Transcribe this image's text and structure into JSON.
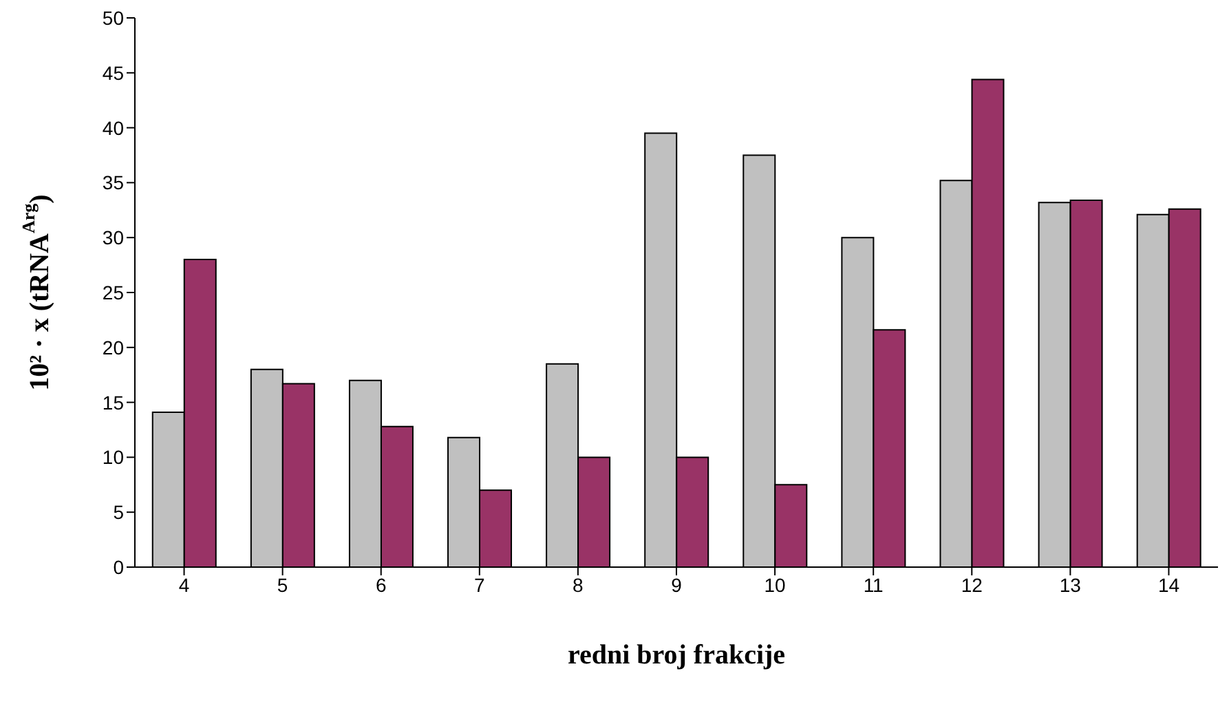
{
  "chart_data": {
    "type": "bar",
    "xlabel": "redni broj frakcije",
    "ylabel": "10² · x (tRNA$^{Arg}$)",
    "categories": [
      "4",
      "5",
      "6",
      "7",
      "8",
      "9",
      "10",
      "11",
      "12",
      "13",
      "14"
    ],
    "series": [
      {
        "color": "#c0c0c0",
        "values": [
          14.1,
          18,
          17,
          11.8,
          18.5,
          39.5,
          37.5,
          30,
          35.2,
          33.2,
          32.1
        ]
      },
      {
        "color": "#993366",
        "values": [
          28,
          16.7,
          12.8,
          7,
          10,
          10,
          7.5,
          21.6,
          44.4,
          33.4,
          32.6
        ]
      }
    ],
    "ylim": [
      0,
      50
    ],
    "yticks": [
      0,
      5,
      10,
      15,
      20,
      25,
      30,
      35,
      40,
      45,
      50
    ],
    "grid": false,
    "legend": false
  }
}
